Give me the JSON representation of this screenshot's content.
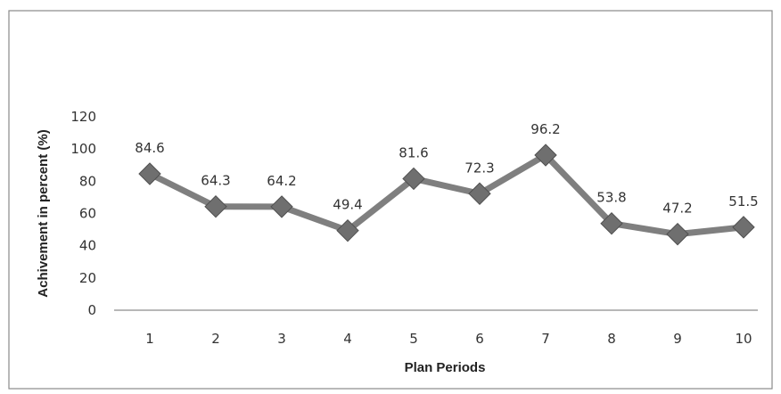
{
  "chart_data": {
    "type": "line",
    "categories": [
      "1",
      "2",
      "3",
      "4",
      "5",
      "6",
      "7",
      "8",
      "9",
      "10"
    ],
    "series": [
      {
        "values": [
          84.6,
          64.3,
          64.2,
          49.4,
          81.6,
          72.3,
          96.2,
          53.8,
          47.2,
          51.5
        ],
        "data_labels": [
          "84.6",
          "64.3",
          "64.2",
          "49.4",
          "81.6",
          "72.3",
          "96.2",
          "53.8",
          "47.2",
          "51.5"
        ]
      }
    ],
    "title": "",
    "xlabel": "Plan Periods",
    "ylabel": "Achivement in percent (%)",
    "ylim": [
      0,
      120
    ],
    "yticks": [
      "0",
      "20",
      "40",
      "60",
      "80",
      "100",
      "120"
    ],
    "grid": false,
    "legend": "none",
    "colors": {
      "line": "#7f7f7f",
      "marker": "#6f6f6f",
      "axis": "#8c8c8c"
    },
    "marker": "diamond"
  }
}
